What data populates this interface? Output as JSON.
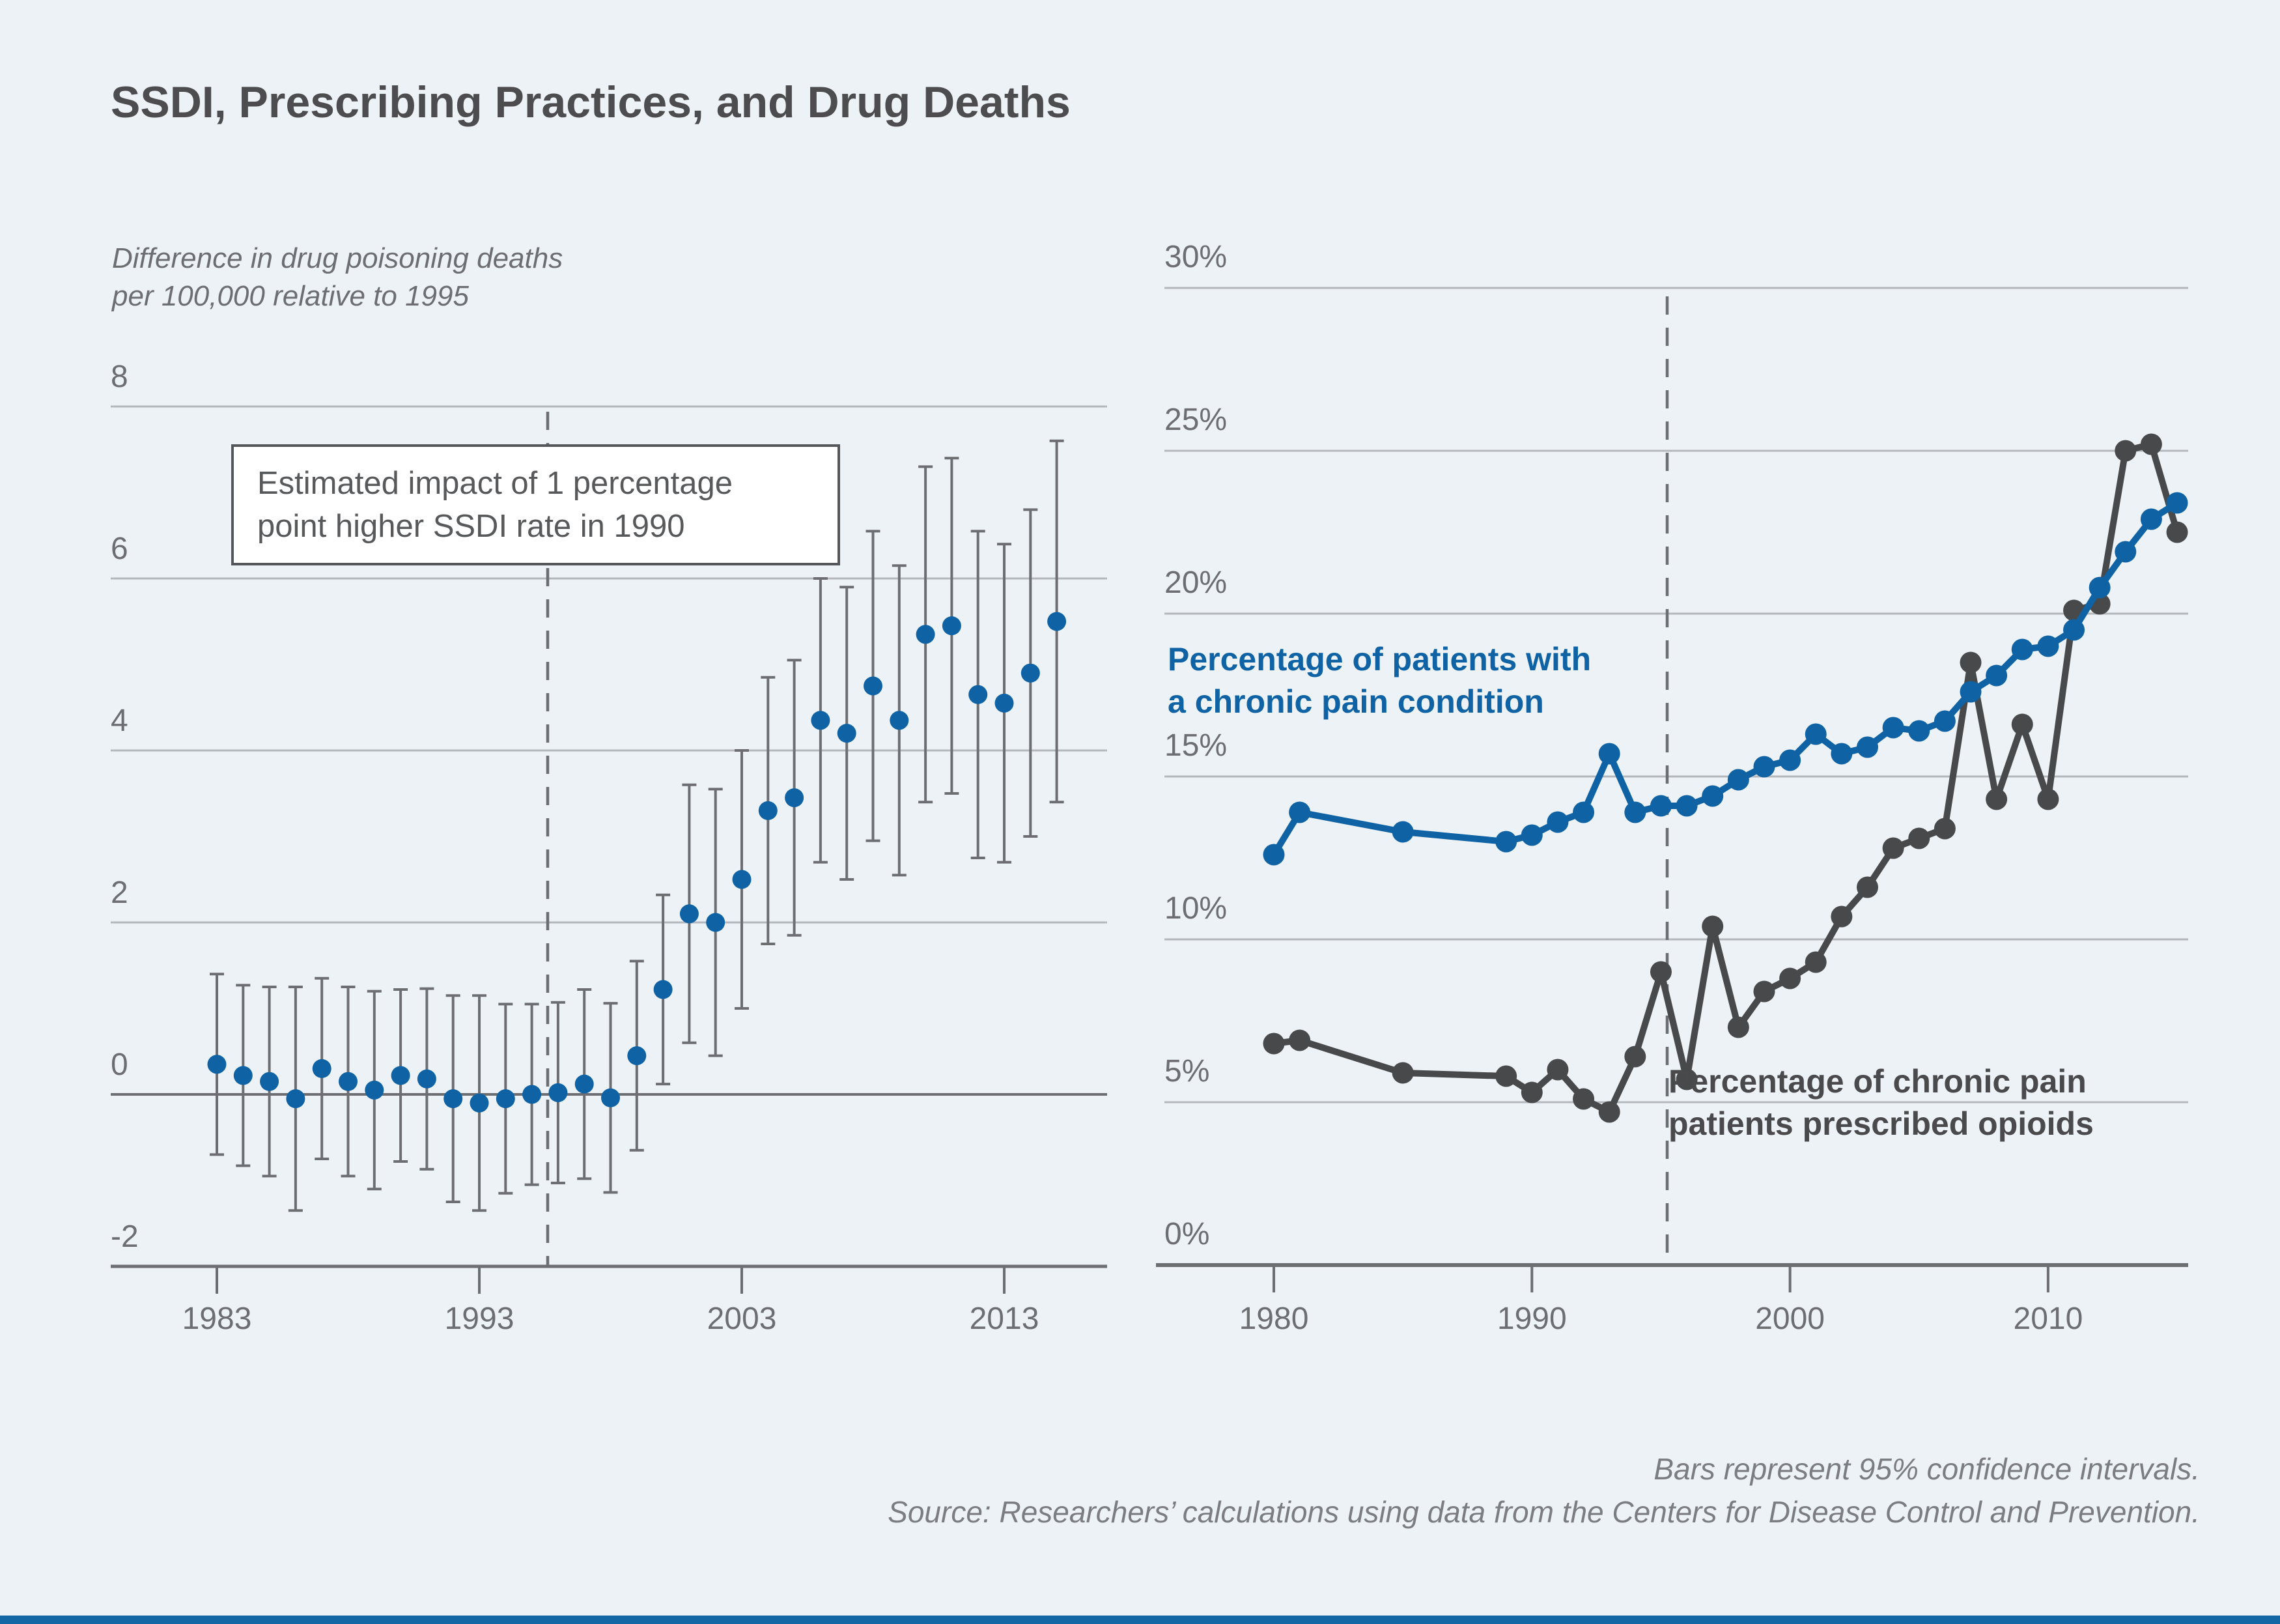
{
  "page": {
    "title": "SSDI, Prescribing Practices, and Drug Deaths",
    "notes": {
      "line1": "Bars represent 95% confidence intervals.",
      "line2": "Source: Researchers’ calculations using data from the Centers for Disease Control and Prevention."
    },
    "footer_bar_color": "#1467a5",
    "background": "#edf2f7"
  },
  "colors": {
    "blue": "#0f63a5",
    "dark": "#48494b",
    "grid": "#b4b8bc",
    "axis": "#6d6e71",
    "ci_bar": "#6d6e71",
    "tick_text": "#6d6e71",
    "box_text": "#58595b"
  },
  "chart_data": [
    {
      "type": "scatter",
      "title": "Estimated impact of 1 percentage point higher SSDI rate in 1990",
      "note_box": [
        "Estimated impact of 1 percentage",
        "point higher SSDI rate in 1990"
      ],
      "subtitle_lines": [
        "Difference in drug poisoning deaths",
        "per 100,000 relative to 1995"
      ],
      "ylabel": "Difference in drug poisoning deaths per 100,000 relative to 1995",
      "ylim": [
        -2,
        8
      ],
      "y_ticks": [
        8,
        6,
        4,
        2,
        0,
        -2
      ],
      "x_ticks": [
        1983,
        1993,
        2003,
        2013
      ],
      "vline_year": 1995.6,
      "grid": true,
      "error_bars": "95% confidence intervals",
      "points": [
        {
          "year": 1983,
          "value": 0.35,
          "lo": -0.7,
          "hi": 1.4
        },
        {
          "year": 1984,
          "value": 0.22,
          "lo": -0.83,
          "hi": 1.27
        },
        {
          "year": 1985,
          "value": 0.15,
          "lo": -0.95,
          "hi": 1.25
        },
        {
          "year": 1986,
          "value": -0.05,
          "lo": -1.35,
          "hi": 1.25
        },
        {
          "year": 1987,
          "value": 0.3,
          "lo": -0.75,
          "hi": 1.35
        },
        {
          "year": 1988,
          "value": 0.15,
          "lo": -0.95,
          "hi": 1.25
        },
        {
          "year": 1989,
          "value": 0.05,
          "lo": -1.1,
          "hi": 1.2
        },
        {
          "year": 1990,
          "value": 0.22,
          "lo": -0.78,
          "hi": 1.22
        },
        {
          "year": 1991,
          "value": 0.18,
          "lo": -0.87,
          "hi": 1.23
        },
        {
          "year": 1992,
          "value": -0.05,
          "lo": -1.25,
          "hi": 1.15
        },
        {
          "year": 1993,
          "value": -0.1,
          "lo": -1.35,
          "hi": 1.15
        },
        {
          "year": 1994,
          "value": -0.05,
          "lo": -1.15,
          "hi": 1.05
        },
        {
          "year": 1995,
          "value": 0.0,
          "lo": -1.05,
          "hi": 1.05
        },
        {
          "year": 1996,
          "value": 0.02,
          "lo": -1.03,
          "hi": 1.07
        },
        {
          "year": 1997,
          "value": 0.12,
          "lo": -0.98,
          "hi": 1.22
        },
        {
          "year": 1998,
          "value": -0.04,
          "lo": -1.14,
          "hi": 1.06
        },
        {
          "year": 1999,
          "value": 0.45,
          "lo": -0.65,
          "hi": 1.55
        },
        {
          "year": 2000,
          "value": 1.22,
          "lo": 0.12,
          "hi": 2.32
        },
        {
          "year": 2001,
          "value": 2.1,
          "lo": 0.6,
          "hi": 3.6
        },
        {
          "year": 2002,
          "value": 2.0,
          "lo": 0.45,
          "hi": 3.55
        },
        {
          "year": 2003,
          "value": 2.5,
          "lo": 1.0,
          "hi": 4.0
        },
        {
          "year": 2004,
          "value": 3.3,
          "lo": 1.75,
          "hi": 4.85
        },
        {
          "year": 2005,
          "value": 3.45,
          "lo": 1.85,
          "hi": 5.05
        },
        {
          "year": 2006,
          "value": 4.35,
          "lo": 2.7,
          "hi": 6.0
        },
        {
          "year": 2007,
          "value": 4.2,
          "lo": 2.5,
          "hi": 5.9
        },
        {
          "year": 2008,
          "value": 4.75,
          "lo": 2.95,
          "hi": 6.55
        },
        {
          "year": 2009,
          "value": 4.35,
          "lo": 2.55,
          "hi": 6.15
        },
        {
          "year": 2010,
          "value": 5.35,
          "lo": 3.4,
          "hi": 7.3
        },
        {
          "year": 2011,
          "value": 5.45,
          "lo": 3.5,
          "hi": 7.4
        },
        {
          "year": 2012,
          "value": 4.65,
          "lo": 2.75,
          "hi": 6.55
        },
        {
          "year": 2013,
          "value": 4.55,
          "lo": 2.7,
          "hi": 6.4
        },
        {
          "year": 2014,
          "value": 4.9,
          "lo": 3.0,
          "hi": 6.8
        },
        {
          "year": 2015,
          "value": 5.5,
          "lo": 3.4,
          "hi": 7.6
        }
      ]
    },
    {
      "type": "line",
      "ylim": [
        0,
        30
      ],
      "y_ticks": [
        "30%",
        "25%",
        "20%",
        "15%",
        "10%",
        "5%",
        "0%"
      ],
      "y_tick_values": [
        30,
        25,
        20,
        15,
        10,
        5,
        0
      ],
      "x_ticks": [
        1980,
        1990,
        2000,
        2010
      ],
      "vline_year": 1995.5,
      "grid": true,
      "x": [
        1980,
        1981,
        1985,
        1989,
        1990,
        1991,
        1992,
        1993,
        1994,
        1995,
        1996,
        1997,
        1998,
        1999,
        2000,
        2001,
        2002,
        2003,
        2004,
        2005,
        2006,
        2007,
        2008,
        2009,
        2010,
        2011,
        2012,
        2013,
        2014,
        2015
      ],
      "series": [
        {
          "name": "Percentage of patients with a chronic pain condition",
          "label_lines": [
            "Percentage of patients with",
            "a chronic pain condition"
          ],
          "color": "#0f63a5",
          "values": [
            12.6,
            13.9,
            13.3,
            13.0,
            13.2,
            13.6,
            13.9,
            15.7,
            13.9,
            14.1,
            14.1,
            14.4,
            14.9,
            15.3,
            15.5,
            16.3,
            15.7,
            15.9,
            16.5,
            16.4,
            16.7,
            17.6,
            18.1,
            18.9,
            19.0,
            19.5,
            20.8,
            21.9,
            22.9,
            23.4
          ]
        },
        {
          "name": "Percentage of chronic pain patients prescribed opioids",
          "label_lines": [
            "Percentage of chronic pain",
            "patients prescribed opioids"
          ],
          "color": "#48494b",
          "values": [
            6.8,
            6.9,
            5.9,
            5.8,
            5.3,
            6.0,
            5.1,
            4.7,
            6.4,
            9.0,
            5.7,
            10.4,
            7.3,
            8.4,
            8.8,
            9.3,
            10.7,
            11.6,
            12.8,
            13.1,
            13.4,
            18.5,
            14.3,
            16.6,
            14.3,
            20.1,
            20.3,
            25.0,
            25.2,
            22.5
          ]
        }
      ]
    }
  ]
}
